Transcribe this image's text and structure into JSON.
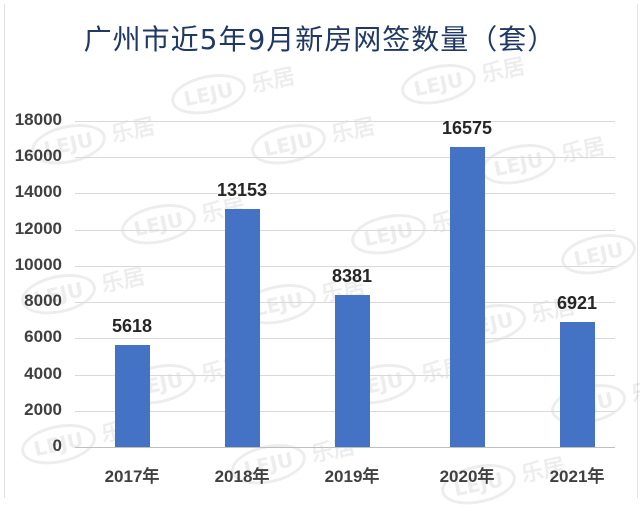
{
  "chart_data": {
    "type": "bar",
    "title": "广州市近5年9月新房网签数量（套）",
    "categories": [
      "2017年",
      "2018年",
      "2019年",
      "2020年",
      "2021年"
    ],
    "values": [
      5618,
      13153,
      8381,
      16575,
      6921
    ],
    "xlabel": "",
    "ylabel": "",
    "ylim": [
      0,
      18000
    ],
    "yticks": [
      0,
      2000,
      4000,
      6000,
      8000,
      10000,
      12000,
      14000,
      16000,
      18000
    ],
    "grid": true,
    "legend": null,
    "data_labels": true,
    "bar_color": "#4472c4",
    "title_color": "#1f3864"
  },
  "watermark": {
    "logo": "LEJU",
    "text": "乐居"
  }
}
